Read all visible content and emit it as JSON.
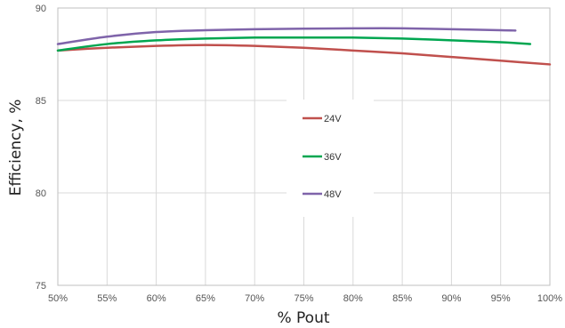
{
  "chart_data": {
    "type": "line",
    "title": "",
    "xlabel": "% Pout",
    "ylabel": "Efficiency, %",
    "xlim": [
      50,
      100
    ],
    "ylim": [
      75,
      90
    ],
    "x_ticks": [
      "50%",
      "55%",
      "60%",
      "65%",
      "70%",
      "75%",
      "80%",
      "85%",
      "90%",
      "95%",
      "100%"
    ],
    "y_ticks": [
      "75",
      "80",
      "85",
      "90"
    ],
    "x_tick_values": [
      50,
      55,
      60,
      65,
      70,
      75,
      80,
      85,
      90,
      95,
      100
    ],
    "y_tick_values": [
      75,
      80,
      85,
      90
    ],
    "grid": true,
    "legend_position": "center",
    "series": [
      {
        "name": "24V",
        "color": "#c0504d",
        "x": [
          50,
          55,
          60,
          65,
          70,
          75,
          80,
          85,
          90,
          95,
          100
        ],
        "y": [
          87.7,
          87.85,
          87.95,
          88.0,
          87.95,
          87.85,
          87.7,
          87.55,
          87.35,
          87.15,
          86.95
        ]
      },
      {
        "name": "36V",
        "color": "#00a650",
        "x": [
          50,
          55,
          60,
          65,
          70,
          75,
          80,
          85,
          90,
          95,
          98
        ],
        "y": [
          87.7,
          88.05,
          88.25,
          88.35,
          88.4,
          88.4,
          88.4,
          88.35,
          88.25,
          88.15,
          88.05
        ]
      },
      {
        "name": "48V",
        "color": "#7f64aa",
        "x": [
          50,
          55,
          60,
          65,
          70,
          75,
          80,
          85,
          90,
          95,
          96.5
        ],
        "y": [
          88.05,
          88.45,
          88.7,
          88.8,
          88.85,
          88.88,
          88.9,
          88.9,
          88.85,
          88.8,
          88.78
        ]
      }
    ]
  }
}
